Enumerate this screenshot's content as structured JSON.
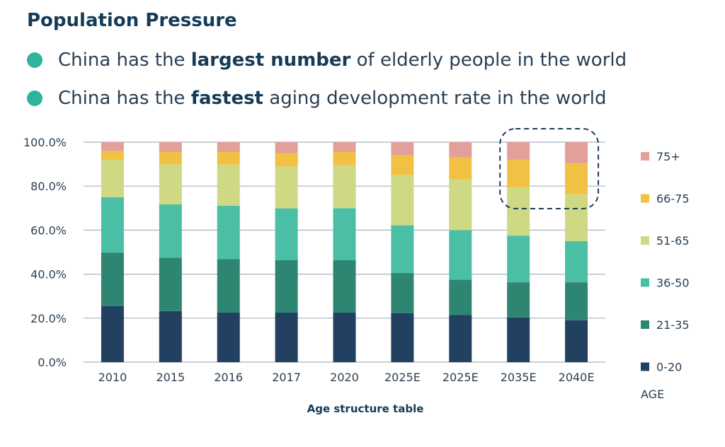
{
  "header": {
    "title": "Population Pressure",
    "bullets": [
      {
        "pre": "China has the ",
        "bold": "largest number",
        "post": " of elderly people in the world"
      },
      {
        "pre": "China has the ",
        "bold": "fastest",
        "post": " aging development rate in the world"
      }
    ]
  },
  "colors": {
    "bullet_dot": "#2fb39a",
    "grid": "#a8b4be",
    "highlight_border": "#1f3b54"
  },
  "chart_data": {
    "type": "bar",
    "stacked": true,
    "categories": [
      "2010",
      "2015",
      "2016",
      "2017",
      "2020",
      "2025E",
      "2025E",
      "2035E",
      "2040E"
    ],
    "xlabel": "Age structure table",
    "legend_title": "AGE",
    "ylim": [
      0,
      100
    ],
    "yticks": [
      "0.0%",
      "20.0%",
      "40.0%",
      "60.0%",
      "80.0%",
      "100.0%"
    ],
    "grid": true,
    "legend_position": "right",
    "highlight_categories": [
      7,
      8
    ],
    "series": [
      {
        "name": "0-20",
        "color": "#22405f",
        "values": [
          25.5,
          23.2,
          22.5,
          22.5,
          22.5,
          22.3,
          21.5,
          20.3,
          19.0
        ]
      },
      {
        "name": "21-35",
        "color": "#2e8572",
        "values": [
          24.3,
          24.3,
          24.3,
          23.8,
          23.8,
          18.2,
          16.0,
          16.0,
          17.3
        ]
      },
      {
        "name": "36-50",
        "color": "#4bbfa5",
        "values": [
          25.2,
          24.2,
          24.3,
          23.6,
          23.7,
          21.7,
          22.5,
          21.2,
          18.7
        ]
      },
      {
        "name": "51-65",
        "color": "#cfd882",
        "values": [
          17.0,
          18.3,
          18.7,
          19.1,
          19.5,
          23.0,
          23.0,
          22.0,
          21.3
        ]
      },
      {
        "name": "66-75",
        "color": "#f2c043",
        "values": [
          4.0,
          5.5,
          5.7,
          6.0,
          6.0,
          9.0,
          10.0,
          12.5,
          14.2
        ]
      },
      {
        "name": "75+",
        "color": "#e3a09a",
        "values": [
          4.0,
          4.5,
          4.5,
          5.0,
          4.5,
          5.8,
          7.0,
          8.0,
          9.5
        ]
      }
    ]
  }
}
